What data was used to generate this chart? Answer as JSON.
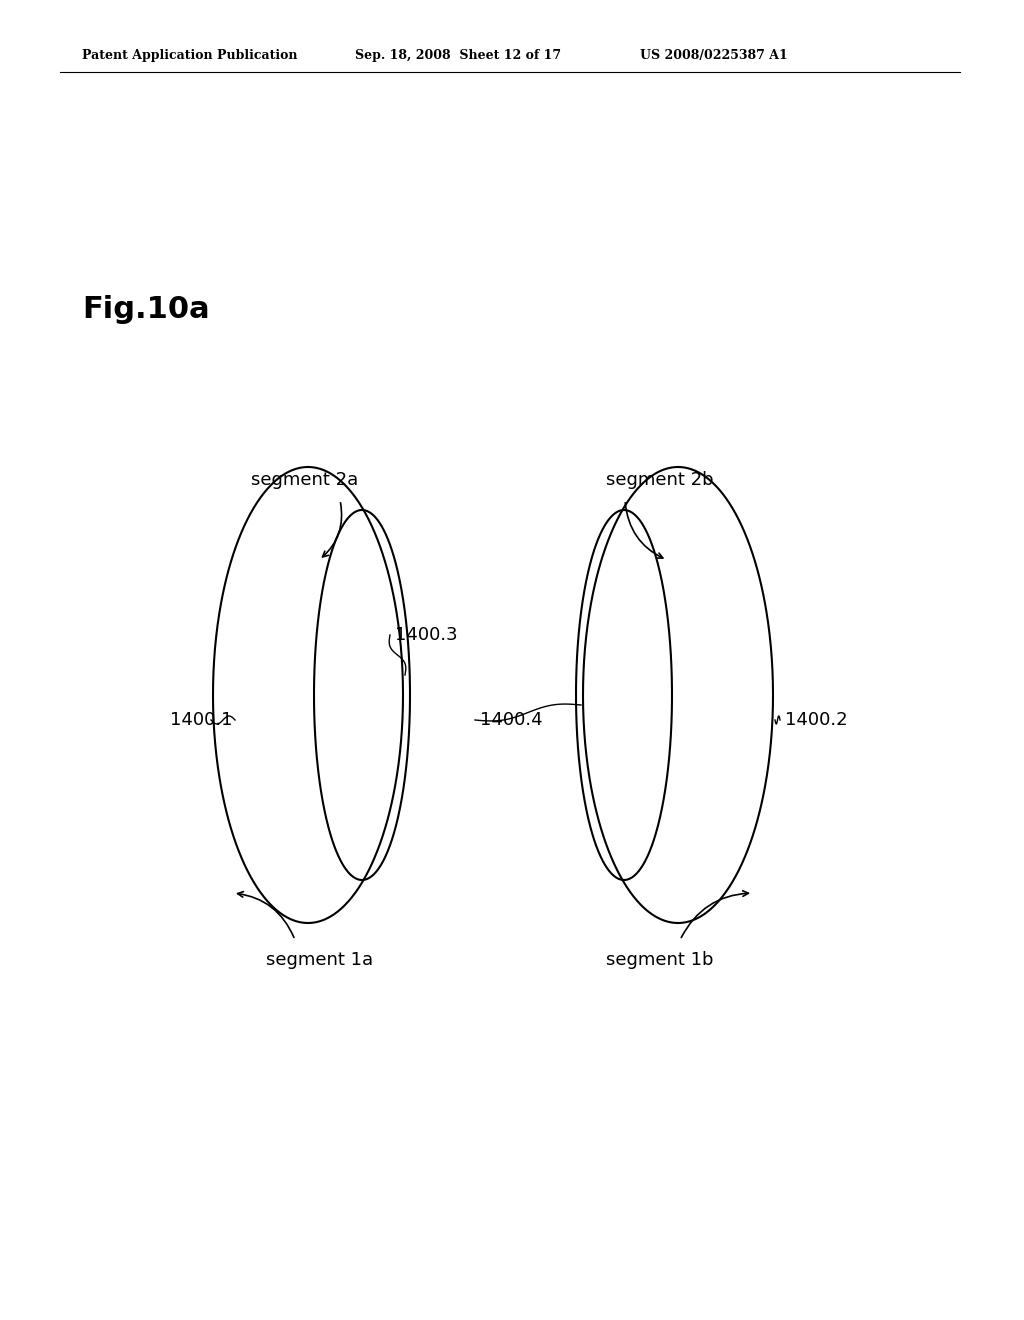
{
  "header_left": "Patent Application Publication",
  "header_mid": "Sep. 18, 2008  Sheet 12 of 17",
  "header_right": "US 2008/0225387 A1",
  "fig_label": "Fig.10a",
  "seg2a": "segment 2a",
  "seg2b": "segment 2b",
  "seg1a": "segment 1a",
  "seg1b": "segment 1b",
  "lbl_1400_1": "1400.1",
  "lbl_1400_2": "1400.2",
  "lbl_1400_3": "1400.3",
  "lbl_1400_4": "1400.4",
  "bg_color": "#ffffff",
  "lc": "#000000",
  "lw": 1.5
}
